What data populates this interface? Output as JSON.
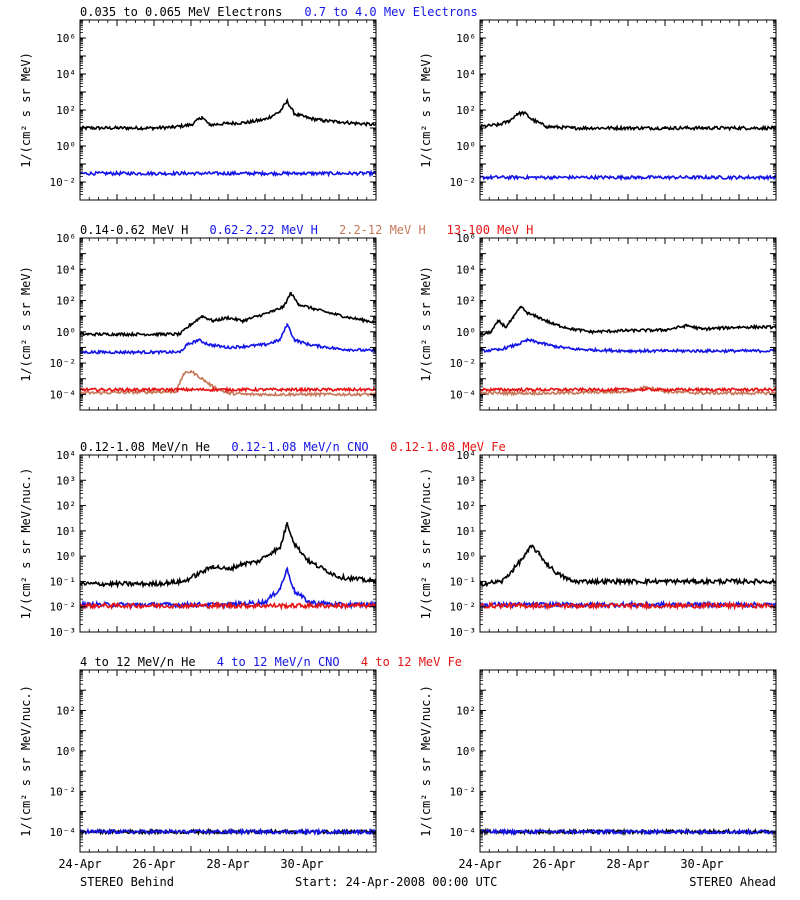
{
  "colors": {
    "black": "#000000",
    "blue": "#1414e6",
    "tan": "#c8785a",
    "red": "#e61414"
  },
  "footer": {
    "left": "STEREO Behind",
    "center": "Start: 24-Apr-2008 00:00 UTC",
    "right": "STEREO Ahead"
  },
  "chart_data": [
    {
      "id": "electrons-behind",
      "type": "scatter",
      "title_segments": [
        {
          "text": "0.035 to 0.065 MeV Electrons",
          "color": "#000000"
        },
        {
          "text": "0.7 to 4.0 Mev Electrons",
          "color": "#1414e6"
        }
      ],
      "ylabel": "1/(cm² s sr MeV)",
      "yscale": "log",
      "ylim": [
        0.001,
        10000000
      ],
      "yticks": [
        0.01,
        1,
        100,
        10000,
        1000000
      ],
      "ytick_labels": [
        "10⁻²",
        "10⁰",
        "10²",
        "10⁴",
        "10⁶"
      ],
      "x_unit": "day since 24-Apr-2008 00:00 UTC",
      "xlim": [
        0,
        8
      ],
      "series": [
        {
          "name": "0.035 to 0.065 MeV Electrons",
          "color": "#000000",
          "x": [
            0,
            1,
            2,
            2.5,
            3.0,
            3.3,
            3.5,
            4.0,
            4.5,
            5.0,
            5.4,
            5.6,
            5.8,
            6.2,
            6.6,
            7.0,
            7.5,
            8.0
          ],
          "y": [
            10,
            10,
            10,
            11,
            15,
            40,
            15,
            18,
            20,
            30,
            80,
            300,
            60,
            35,
            25,
            22,
            18,
            15
          ]
        },
        {
          "name": "0.7 to 4.0 Mev Electrons",
          "color": "#1414e6",
          "x": [
            0,
            1,
            2,
            3,
            4,
            5,
            6,
            7,
            8
          ],
          "y": [
            0.03,
            0.03,
            0.03,
            0.03,
            0.03,
            0.03,
            0.03,
            0.03,
            0.03
          ]
        }
      ]
    },
    {
      "id": "electrons-ahead",
      "type": "scatter",
      "title_segments": [],
      "ylabel": "1/(cm² s sr MeV)",
      "yscale": "log",
      "ylim": [
        0.001,
        10000000
      ],
      "yticks": [
        0.01,
        1,
        100,
        10000,
        1000000
      ],
      "ytick_labels": [
        "10⁻²",
        "10⁰",
        "10²",
        "10⁴",
        "10⁶"
      ],
      "x_unit": "day since 24-Apr-2008 00:00 UTC",
      "xlim": [
        0,
        8
      ],
      "series": [
        {
          "name": "0.035 to 0.065 MeV Electrons",
          "color": "#000000",
          "x": [
            0,
            0.5,
            0.8,
            1.0,
            1.2,
            1.4,
            1.8,
            2.5,
            3,
            4,
            5,
            6,
            7,
            8
          ],
          "y": [
            12,
            15,
            25,
            60,
            70,
            30,
            12,
            10,
            10,
            10,
            10,
            10,
            10,
            10
          ]
        },
        {
          "name": "0.7 to 4.0 Mev Electrons",
          "color": "#1414e6",
          "x": [
            0,
            1,
            2,
            3,
            4,
            5,
            6,
            7,
            8
          ],
          "y": [
            0.018,
            0.018,
            0.018,
            0.018,
            0.018,
            0.018,
            0.018,
            0.018,
            0.018
          ]
        }
      ]
    },
    {
      "id": "protons-behind",
      "type": "scatter",
      "title_segments": [
        {
          "text": "0.14-0.62 MeV H",
          "color": "#000000"
        },
        {
          "text": "0.62-2.22 MeV H",
          "color": "#1414e6"
        },
        {
          "text": "2.2-12 MeV H",
          "color": "#c8785a"
        },
        {
          "text": "13-100 MeV H",
          "color": "#e61414"
        }
      ],
      "ylabel": "1/(cm² s sr MeV)",
      "yscale": "log",
      "ylim": [
        1e-05,
        1000000
      ],
      "yticks": [
        0.0001,
        0.01,
        1,
        100,
        10000,
        1000000
      ],
      "ytick_labels": [
        "10⁻⁴",
        "10⁻²",
        "10⁰",
        "10²",
        "10⁴",
        "10⁶"
      ],
      "x_unit": "day since 24-Apr-2008 00:00 UTC",
      "xlim": [
        0,
        8
      ],
      "series": [
        {
          "name": "0.14-0.62 MeV H",
          "color": "#000000",
          "x": [
            0,
            1,
            2,
            2.7,
            3.0,
            3.3,
            3.6,
            4.0,
            4.4,
            4.8,
            5.2,
            5.5,
            5.7,
            5.9,
            6.3,
            6.8,
            7.3,
            8.0
          ],
          "y": [
            0.7,
            0.7,
            0.7,
            0.7,
            3,
            10,
            5,
            8,
            5,
            10,
            20,
            40,
            300,
            60,
            30,
            15,
            8,
            4
          ]
        },
        {
          "name": "0.62-2.22 MeV H",
          "color": "#1414e6",
          "x": [
            0,
            1,
            2,
            2.7,
            2.9,
            3.2,
            3.5,
            4.0,
            4.5,
            5.0,
            5.4,
            5.6,
            5.8,
            6.2,
            7.0,
            8.0
          ],
          "y": [
            0.05,
            0.05,
            0.05,
            0.05,
            0.15,
            0.3,
            0.15,
            0.1,
            0.12,
            0.15,
            0.3,
            3,
            0.3,
            0.15,
            0.08,
            0.06
          ]
        },
        {
          "name": "2.2-12 MeV H",
          "color": "#c8785a",
          "x": [
            0,
            2.6,
            2.8,
            3.0,
            3.3,
            3.6,
            4.0,
            4.5,
            6,
            8
          ],
          "y": [
            0.00012,
            0.00015,
            0.002,
            0.003,
            0.001,
            0.0003,
            0.00012,
            0.0001,
            0.0001,
            0.0001
          ]
        },
        {
          "name": "13-100 MeV H",
          "color": "#e61414",
          "x": [
            0,
            1,
            2,
            3,
            4,
            5,
            6,
            7,
            8
          ],
          "y": [
            0.0002,
            0.0002,
            0.0002,
            0.0002,
            0.0002,
            0.0002,
            0.0002,
            0.0002,
            0.0002
          ]
        }
      ]
    },
    {
      "id": "protons-ahead",
      "type": "scatter",
      "title_segments": [],
      "ylabel": "1/(cm² s sr MeV)",
      "yscale": "log",
      "ylim": [
        1e-05,
        1000000
      ],
      "yticks": [
        0.0001,
        0.01,
        1,
        100,
        10000,
        1000000
      ],
      "ytick_labels": [
        "10⁻⁴",
        "10⁻²",
        "10⁰",
        "10²",
        "10⁴",
        "10⁶"
      ],
      "x_unit": "day since 24-Apr-2008 00:00 UTC",
      "xlim": [
        0,
        8
      ],
      "series": [
        {
          "name": "0.14-0.62 MeV H",
          "color": "#000000",
          "x": [
            0,
            0.3,
            0.5,
            0.7,
            0.9,
            1.1,
            1.3,
            1.6,
            2.0,
            2.5,
            3,
            4,
            5,
            5.6,
            6,
            7,
            8
          ],
          "y": [
            0.6,
            1,
            5,
            2,
            8,
            40,
            15,
            8,
            3,
            1.5,
            1,
            1.2,
            1.3,
            2.5,
            1.5,
            2,
            2
          ]
        },
        {
          "name": "0.62-2.22 MeV H",
          "color": "#1414e6",
          "x": [
            0,
            0.5,
            1.0,
            1.3,
            1.6,
            2.0,
            2.5,
            3,
            4,
            5,
            6,
            7,
            8
          ],
          "y": [
            0.06,
            0.07,
            0.15,
            0.3,
            0.2,
            0.12,
            0.08,
            0.07,
            0.06,
            0.06,
            0.06,
            0.06,
            0.06
          ]
        },
        {
          "name": "2.2-12 MeV H",
          "color": "#c8785a",
          "x": [
            0,
            2,
            4,
            4.5,
            5,
            6,
            8
          ],
          "y": [
            0.00012,
            0.00012,
            0.00015,
            0.0003,
            0.00015,
            0.00012,
            0.00012
          ]
        },
        {
          "name": "13-100 MeV H",
          "color": "#e61414",
          "x": [
            0,
            1,
            2,
            3,
            4,
            5,
            6,
            7,
            8
          ],
          "y": [
            0.0002,
            0.0002,
            0.0002,
            0.0002,
            0.0002,
            0.0002,
            0.0002,
            0.0002,
            0.0002
          ]
        }
      ]
    },
    {
      "id": "heavy-behind",
      "type": "scatter",
      "title_segments": [
        {
          "text": "0.12-1.08 MeV/n He",
          "color": "#000000"
        },
        {
          "text": "0.12-1.08 MeV/n CNO",
          "color": "#1414e6"
        },
        {
          "text": "0.12-1.08 MeV Fe",
          "color": "#e61414"
        }
      ],
      "ylabel": "1/(cm² s sr MeV/nuc.)",
      "yscale": "log",
      "ylim": [
        0.001,
        10000
      ],
      "yticks": [
        0.001,
        0.01,
        0.1,
        1,
        10,
        100,
        1000,
        10000
      ],
      "ytick_labels": [
        "10⁻³",
        "10⁻²",
        "10⁻¹",
        "10⁰",
        "10¹",
        "10²",
        "10³",
        "10⁴"
      ],
      "x_unit": "day since 24-Apr-2008 00:00 UTC",
      "xlim": [
        0,
        8
      ],
      "series": [
        {
          "name": "0.12-1.08 MeV/n He",
          "color": "#000000",
          "x": [
            0,
            1,
            2,
            2.8,
            3.2,
            3.6,
            4.0,
            4.4,
            4.8,
            5.2,
            5.4,
            5.6,
            5.8,
            6.2,
            6.6,
            7,
            8
          ],
          "y": [
            0.08,
            0.08,
            0.08,
            0.1,
            0.2,
            0.4,
            0.3,
            0.5,
            0.6,
            1.5,
            2,
            20,
            3,
            0.6,
            0.3,
            0.15,
            0.1
          ]
        },
        {
          "name": "0.12-1.08 MeV/n CNO",
          "color": "#1414e6",
          "x": [
            0,
            1,
            2,
            3,
            4,
            5,
            5.4,
            5.6,
            5.8,
            6.2,
            7,
            8
          ],
          "y": [
            0.012,
            0.012,
            0.012,
            0.012,
            0.012,
            0.015,
            0.05,
            0.3,
            0.04,
            0.015,
            0.012,
            0.012
          ]
        },
        {
          "name": "0.12-1.08 MeV Fe",
          "color": "#e61414",
          "x": [
            0,
            1,
            2,
            3,
            4,
            5,
            6,
            7,
            8
          ],
          "y": [
            0.011,
            0.011,
            0.011,
            0.011,
            0.011,
            0.011,
            0.011,
            0.011,
            0.011
          ]
        }
      ]
    },
    {
      "id": "heavy-ahead",
      "type": "scatter",
      "title_segments": [],
      "ylabel": "1/(cm² s sr MeV/nuc.)",
      "yscale": "log",
      "ylim": [
        0.001,
        10000
      ],
      "yticks": [
        0.001,
        0.01,
        0.1,
        1,
        10,
        100,
        1000,
        10000
      ],
      "ytick_labels": [
        "10⁻³",
        "10⁻²",
        "10⁻¹",
        "10⁰",
        "10¹",
        "10²",
        "10³",
        "10⁴"
      ],
      "x_unit": "day since 24-Apr-2008 00:00 UTC",
      "xlim": [
        0,
        8
      ],
      "series": [
        {
          "name": "0.12-1.08 MeV/n He",
          "color": "#000000",
          "x": [
            0,
            0.6,
            0.9,
            1.2,
            1.4,
            1.6,
            1.8,
            2.1,
            2.5,
            3,
            4,
            5,
            6,
            7,
            8
          ],
          "y": [
            0.08,
            0.1,
            0.3,
            1.0,
            2.5,
            1.2,
            0.5,
            0.2,
            0.1,
            0.1,
            0.1,
            0.1,
            0.1,
            0.1,
            0.1
          ]
        },
        {
          "name": "0.12-1.08 MeV/n CNO",
          "color": "#1414e6",
          "x": [
            0,
            1,
            2,
            3,
            4,
            5,
            6,
            7,
            8
          ],
          "y": [
            0.012,
            0.012,
            0.012,
            0.012,
            0.012,
            0.012,
            0.012,
            0.012,
            0.012
          ]
        },
        {
          "name": "0.12-1.08 MeV Fe",
          "color": "#e61414",
          "x": [
            0,
            1,
            2,
            3,
            4,
            5,
            6,
            7,
            8
          ],
          "y": [
            0.011,
            0.011,
            0.011,
            0.011,
            0.011,
            0.011,
            0.011,
            0.011,
            0.011
          ]
        }
      ]
    },
    {
      "id": "hiheavy-behind",
      "type": "scatter",
      "title_segments": [
        {
          "text": "4 to 12 MeV/n He",
          "color": "#000000"
        },
        {
          "text": "4 to 12 MeV/n CNO",
          "color": "#1414e6"
        },
        {
          "text": "4 to 12 MeV Fe",
          "color": "#e61414"
        }
      ],
      "ylabel": "1/(cm² s sr MeV/nuc.)",
      "yscale": "log",
      "ylim": [
        1e-05,
        10000
      ],
      "yticks": [
        0.0001,
        0.01,
        1,
        100
      ],
      "ytick_labels": [
        "10⁻⁴",
        "10⁻²",
        "10⁰",
        "10²"
      ],
      "xticks": [
        0,
        2,
        4,
        6
      ],
      "xtick_labels": [
        "24-Apr",
        "26-Apr",
        "28-Apr",
        "30-Apr"
      ],
      "x_unit": "day since 24-Apr-2008 00:00 UTC",
      "xlim": [
        0,
        8
      ],
      "series": [
        {
          "name": "4 to 12 MeV/n He",
          "color": "#000000",
          "x": [
            0,
            1,
            2,
            3,
            4,
            5,
            6,
            7,
            8
          ],
          "y": [
            0.0001,
            0.0001,
            0.0001,
            0.0001,
            0.0001,
            0.0001,
            0.0001,
            0.0001,
            0.0001
          ]
        },
        {
          "name": "4 to 12 MeV/n CNO",
          "color": "#1414e6",
          "x": [
            0,
            1,
            2,
            3,
            4,
            5,
            6,
            7,
            8
          ],
          "y": [
            0.0001,
            0.0001,
            0.0001,
            0.0001,
            0.0001,
            0.0001,
            0.0001,
            0.0001,
            0.0001
          ]
        }
      ]
    },
    {
      "id": "hiheavy-ahead",
      "type": "scatter",
      "title_segments": [],
      "ylabel": "1/(cm² s sr MeV/nuc.)",
      "yscale": "log",
      "ylim": [
        1e-05,
        10000
      ],
      "yticks": [
        0.0001,
        0.01,
        1,
        100
      ],
      "ytick_labels": [
        "10⁻⁴",
        "10⁻²",
        "10⁰",
        "10²"
      ],
      "xticks": [
        0,
        2,
        4,
        6
      ],
      "xtick_labels": [
        "24-Apr",
        "26-Apr",
        "28-Apr",
        "30-Apr"
      ],
      "x_unit": "day since 24-Apr-2008 00:00 UTC",
      "xlim": [
        0,
        8
      ],
      "series": [
        {
          "name": "4 to 12 MeV/n He",
          "color": "#000000",
          "x": [
            0,
            1,
            2,
            3,
            4,
            5,
            6,
            7,
            8
          ],
          "y": [
            0.0001,
            0.0001,
            0.0001,
            0.0001,
            0.0001,
            0.0001,
            0.0001,
            0.0001,
            0.0001
          ]
        },
        {
          "name": "4 to 12 MeV/n CNO",
          "color": "#1414e6",
          "x": [
            0,
            1,
            2,
            3,
            4,
            5,
            6,
            7,
            8
          ],
          "y": [
            0.0001,
            0.0001,
            0.0001,
            0.0001,
            0.0001,
            0.0001,
            0.0001,
            0.0001,
            0.0001
          ]
        }
      ]
    }
  ]
}
